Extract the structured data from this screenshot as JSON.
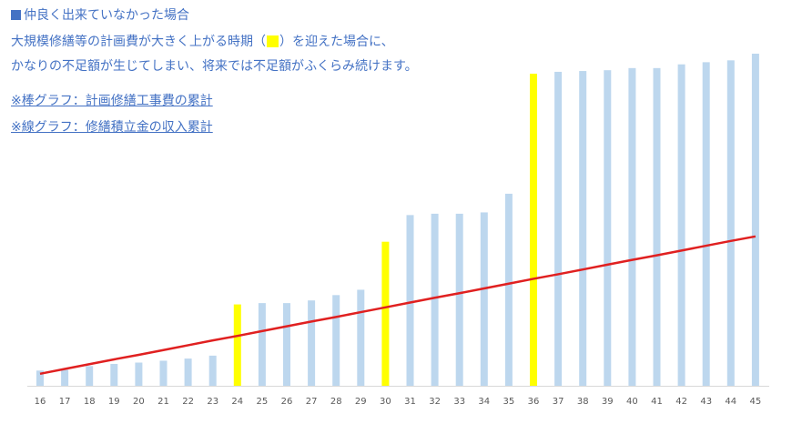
{
  "notes": {
    "heading": "仲良く出来ていなかった場合",
    "line2_before": "大規模修繕等の計画費が大きく上がる時期（",
    "line2_after": "）を迎えた場合に、",
    "line3": "かなりの不足額が生じてしまい、将来では不足額がふくらみ続けます。",
    "legend_bar": "※棒グラフ：計画修繕工事費の累計",
    "legend_line": "※線グラフ：修繕積立金の収入累計"
  },
  "colors": {
    "text": "#4472c4",
    "bar": "#bdd7ee",
    "highlight": "#ffff00",
    "line": "#e02020",
    "axis": "#d9d9d9"
  },
  "chart_data": {
    "type": "bar",
    "categories": [
      "16",
      "17",
      "18",
      "19",
      "20",
      "21",
      "22",
      "23",
      "24",
      "25",
      "26",
      "27",
      "28",
      "29",
      "30",
      "31",
      "32",
      "33",
      "34",
      "35",
      "36",
      "37",
      "38",
      "39",
      "40",
      "41",
      "42",
      "43",
      "44",
      "45"
    ],
    "series": [
      {
        "type": "bar",
        "values": [
          5.7,
          6.0,
          7.4,
          8.2,
          8.7,
          9.4,
          10.2,
          11.3,
          30.5,
          31.0,
          31.0,
          32.0,
          34.0,
          36.0,
          54.0,
          64.0,
          64.5,
          64.5,
          65.0,
          72.0,
          117.0,
          117.7,
          118.0,
          118.3,
          119.1,
          119.1,
          120.5,
          121.3,
          122.0,
          124.5
        ],
        "highlight": [
          "24",
          "30",
          "36"
        ]
      },
      {
        "type": "line",
        "values": [
          4.5,
          6.3,
          8.1,
          9.9,
          11.6,
          13.4,
          15.2,
          17.0,
          18.7,
          20.5,
          22.3,
          24.1,
          25.8,
          27.6,
          29.4,
          31.2,
          33.0,
          34.7,
          36.5,
          38.3,
          40.1,
          41.8,
          43.6,
          45.4,
          47.2,
          48.9,
          50.7,
          52.5,
          54.3,
          56.0
        ]
      }
    ],
    "ylim": [
      0,
      130
    ],
    "grid": false,
    "legend": "none"
  }
}
